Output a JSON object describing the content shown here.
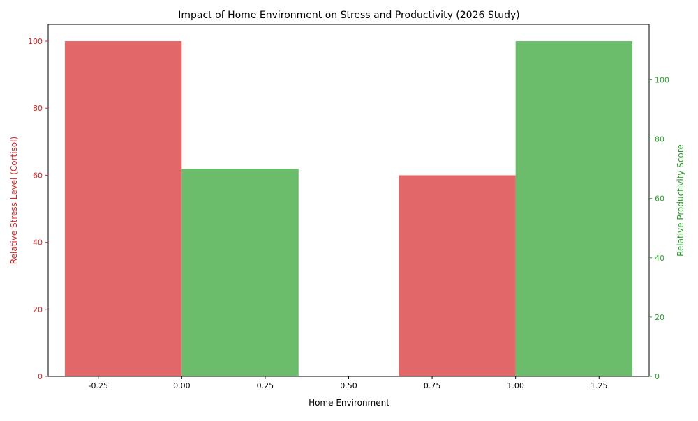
{
  "chart_data": {
    "type": "bar",
    "title": "Impact of Home Environment on Stress and Productivity (2026 Study)",
    "xlabel": "Home Environment",
    "xlim": [
      -0.4,
      1.4
    ],
    "x_ticks": [
      "-0.25",
      "0.00",
      "0.25",
      "0.50",
      "0.75",
      "1.00",
      "1.25"
    ],
    "x_tick_values": [
      -0.25,
      0,
      0.25,
      0.5,
      0.75,
      1.0,
      1.25
    ],
    "bar_width": 0.35,
    "series": [
      {
        "axis": "left",
        "color": "#d62728",
        "x_centers": [
          -0.175,
          0.825
        ],
        "values": [
          100,
          60
        ]
      },
      {
        "axis": "right",
        "color": "#2ca02c",
        "x_centers": [
          0.175,
          1.175
        ],
        "values": [
          70,
          113
        ]
      }
    ],
    "y_left": {
      "label": "Relative Stress Level (Cortisol)",
      "color": "#d62728",
      "ylim": [
        0,
        105
      ],
      "ticks": [
        0,
        20,
        40,
        60,
        80,
        100
      ]
    },
    "y_right": {
      "label": "Relative Productivity Score",
      "color": "#2ca02c",
      "ylim": [
        0,
        118.65
      ],
      "ticks": [
        0,
        20,
        40,
        60,
        80,
        100
      ]
    },
    "grid": false,
    "bar_opacity": 0.7
  }
}
